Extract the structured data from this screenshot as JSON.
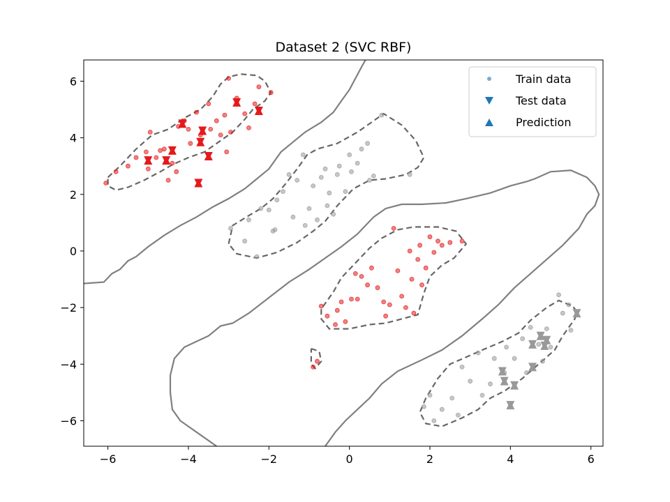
{
  "chart_data": {
    "type": "scatter",
    "title": "Dataset 2 (SVC RBF)",
    "xlabel": "",
    "ylabel": "",
    "xlim": [
      -6.6,
      6.3
    ],
    "ylim": [
      -6.9,
      6.75
    ],
    "xticks": [
      -6,
      -4,
      -2,
      0,
      2,
      4,
      6
    ],
    "yticks": [
      -6,
      -4,
      -2,
      0,
      2,
      4,
      6
    ],
    "grid": false,
    "legend": {
      "position": "top-right",
      "entries": [
        {
          "label": "Train data",
          "marker": "circle",
          "color": "#1f77b4"
        },
        {
          "label": "Test data",
          "marker": "triangle-down",
          "color": "#1f77b4"
        },
        {
          "label": "Prediction",
          "marker": "triangle-up",
          "color": "#1f77b4"
        }
      ]
    },
    "colors": {
      "class_red": "#e41a1c",
      "class_gray": "#999999",
      "boundary": "#7f7f7f",
      "legend_blue": "#1f77b4"
    },
    "train_data": {
      "red": [
        [
          -6.05,
          2.4
        ],
        [
          -5.8,
          2.8
        ],
        [
          -5.5,
          3.0
        ],
        [
          -5.3,
          3.3
        ],
        [
          -5.05,
          3.5
        ],
        [
          -5.0,
          2.9
        ],
        [
          -4.95,
          4.2
        ],
        [
          -4.8,
          3.3
        ],
        [
          -4.7,
          3.55
        ],
        [
          -4.6,
          3.6
        ],
        [
          -4.5,
          2.5
        ],
        [
          -4.4,
          3.1
        ],
        [
          -4.3,
          2.8
        ],
        [
          -4.25,
          4.4
        ],
        [
          -4.1,
          4.6
        ],
        [
          -4.0,
          4.3
        ],
        [
          -3.95,
          3.8
        ],
        [
          -3.8,
          4.9
        ],
        [
          -3.7,
          4.1
        ],
        [
          -3.5,
          5.2
        ],
        [
          -3.45,
          4.3
        ],
        [
          -3.3,
          4.6
        ],
        [
          -3.2,
          4.1
        ],
        [
          -3.1,
          4.8
        ],
        [
          -3.05,
          3.5
        ],
        [
          -3.0,
          6.1
        ],
        [
          -2.95,
          4.2
        ],
        [
          -2.8,
          5.4
        ],
        [
          -2.6,
          4.85
        ],
        [
          -2.5,
          4.35
        ],
        [
          -2.35,
          5.2
        ],
        [
          -2.25,
          5.8
        ],
        [
          -1.95,
          5.6
        ],
        [
          -0.9,
          -4.1
        ],
        [
          -0.8,
          -3.9
        ],
        [
          -0.7,
          -1.95
        ],
        [
          -0.55,
          -2.3
        ],
        [
          -0.35,
          -2.6
        ],
        [
          -0.3,
          -2.1
        ],
        [
          -0.2,
          -1.8
        ],
        [
          -0.1,
          -2.5
        ],
        [
          0.05,
          -1.7
        ],
        [
          0.15,
          -0.8
        ],
        [
          0.2,
          -1.7
        ],
        [
          0.3,
          -0.9
        ],
        [
          0.45,
          -1.2
        ],
        [
          0.55,
          -0.6
        ],
        [
          0.7,
          -1.3
        ],
        [
          0.85,
          -1.8
        ],
        [
          0.9,
          -2.3
        ],
        [
          1.0,
          -1.9
        ],
        [
          1.1,
          0.8
        ],
        [
          1.2,
          -0.7
        ],
        [
          1.3,
          -1.6
        ],
        [
          1.4,
          -2.0
        ],
        [
          1.5,
          0.0
        ],
        [
          1.55,
          -1.0
        ],
        [
          1.6,
          -2.2
        ],
        [
          1.7,
          -0.3
        ],
        [
          1.75,
          0.2
        ],
        [
          1.8,
          -1.2
        ],
        [
          1.9,
          -0.6
        ],
        [
          2.0,
          0.5
        ],
        [
          2.1,
          -0.05
        ],
        [
          2.2,
          0.35
        ],
        [
          2.3,
          0.2
        ],
        [
          2.5,
          0.3
        ],
        [
          2.8,
          0.35
        ]
      ],
      "gray": [
        [
          -2.95,
          0.8
        ],
        [
          -2.6,
          0.35
        ],
        [
          -2.5,
          1.1
        ],
        [
          -2.3,
          -0.2
        ],
        [
          -2.2,
          1.5
        ],
        [
          -2.0,
          1.45
        ],
        [
          -1.9,
          0.7
        ],
        [
          -1.85,
          0.75
        ],
        [
          -1.8,
          1.8
        ],
        [
          -1.65,
          2.1
        ],
        [
          -1.5,
          2.7
        ],
        [
          -1.4,
          1.2
        ],
        [
          -1.3,
          2.5
        ],
        [
          -1.15,
          3.4
        ],
        [
          -1.1,
          0.9
        ],
        [
          -1.0,
          1.5
        ],
        [
          -0.9,
          2.3
        ],
        [
          -0.8,
          1.1
        ],
        [
          -0.7,
          2.6
        ],
        [
          -0.6,
          2.9
        ],
        [
          -0.55,
          1.6
        ],
        [
          -0.5,
          2.05
        ],
        [
          -0.4,
          1.3
        ],
        [
          -0.3,
          2.7
        ],
        [
          -0.25,
          3.0
        ],
        [
          -0.1,
          2.1
        ],
        [
          0.0,
          3.4
        ],
        [
          0.05,
          2.8
        ],
        [
          0.2,
          3.1
        ],
        [
          0.3,
          3.6
        ],
        [
          0.45,
          3.8
        ],
        [
          0.5,
          2.5
        ],
        [
          0.6,
          2.65
        ],
        [
          0.8,
          4.8
        ],
        [
          1.5,
          2.7
        ],
        [
          1.85,
          -5.5
        ],
        [
          2.0,
          -5.1
        ],
        [
          2.1,
          -6.0
        ],
        [
          2.3,
          -5.6
        ],
        [
          2.55,
          -5.2
        ],
        [
          2.7,
          -5.8
        ],
        [
          2.8,
          -4.1
        ],
        [
          3.0,
          -4.6
        ],
        [
          3.2,
          -3.6
        ],
        [
          3.3,
          -5.1
        ],
        [
          3.5,
          -4.7
        ],
        [
          3.6,
          -3.8
        ],
        [
          3.85,
          -4.3
        ],
        [
          3.9,
          -3.4
        ],
        [
          4.1,
          -3.8
        ],
        [
          4.3,
          -3.1
        ],
        [
          4.4,
          -4.3
        ],
        [
          4.5,
          -2.7
        ],
        [
          4.7,
          -3.3
        ],
        [
          4.8,
          -3.9
        ],
        [
          4.9,
          -2.75
        ],
        [
          5.0,
          -3.4
        ],
        [
          5.2,
          -1.55
        ],
        [
          5.3,
          -2.2
        ],
        [
          5.45,
          -1.9
        ],
        [
          5.5,
          -2.8
        ]
      ]
    },
    "test_data": {
      "red": [
        [
          -5.0,
          3.2
        ],
        [
          -4.55,
          3.2
        ],
        [
          -4.4,
          3.55
        ],
        [
          -4.15,
          4.5
        ],
        [
          -3.75,
          2.4
        ],
        [
          -3.7,
          3.85
        ],
        [
          -3.65,
          4.25
        ],
        [
          -3.5,
          3.35
        ],
        [
          -2.8,
          5.25
        ],
        [
          -2.25,
          4.95
        ]
      ],
      "gray": [
        [
          3.8,
          -4.25
        ],
        [
          3.85,
          -4.6
        ],
        [
          4.0,
          -5.45
        ],
        [
          4.1,
          -4.75
        ],
        [
          4.55,
          -3.3
        ],
        [
          4.55,
          -4.1
        ],
        [
          4.75,
          -3.0
        ],
        [
          4.85,
          -3.35
        ],
        [
          4.9,
          -3.15
        ],
        [
          5.65,
          -2.2
        ]
      ]
    },
    "decision_boundaries": [
      [
        [
          -6.6,
          -1.15
        ],
        [
          -6.1,
          -1.1
        ],
        [
          -5.9,
          -0.8
        ],
        [
          -5.7,
          -0.65
        ],
        [
          -5.5,
          -0.35
        ],
        [
          -5.3,
          -0.2
        ],
        [
          -5.0,
          0.15
        ],
        [
          -4.6,
          0.55
        ],
        [
          -4.2,
          0.9
        ],
        [
          -3.8,
          1.2
        ],
        [
          -3.4,
          1.55
        ],
        [
          -3.0,
          1.85
        ],
        [
          -2.6,
          2.2
        ],
        [
          -2.3,
          2.55
        ],
        [
          -2.0,
          2.9
        ],
        [
          -1.7,
          3.5
        ],
        [
          -1.4,
          3.85
        ],
        [
          -1.1,
          4.2
        ],
        [
          -0.7,
          4.55
        ],
        [
          -0.4,
          4.9
        ],
        [
          -0.2,
          5.3
        ],
        [
          0.0,
          5.7
        ],
        [
          0.15,
          6.1
        ],
        [
          0.3,
          6.5
        ],
        [
          0.4,
          6.75
        ]
      ],
      [
        [
          -3.3,
          -6.9
        ],
        [
          -3.7,
          -6.5
        ],
        [
          -4.2,
          -6.0
        ],
        [
          -4.4,
          -5.6
        ],
        [
          -4.45,
          -5.0
        ],
        [
          -4.45,
          -4.4
        ],
        [
          -4.35,
          -3.8
        ],
        [
          -4.1,
          -3.4
        ],
        [
          -3.8,
          -3.2
        ],
        [
          -3.5,
          -3.0
        ],
        [
          -3.2,
          -2.65
        ],
        [
          -2.9,
          -2.55
        ],
        [
          -2.5,
          -2.2
        ],
        [
          -2.0,
          -1.65
        ],
        [
          -1.5,
          -1.1
        ],
        [
          -1.0,
          -0.65
        ],
        [
          -0.6,
          -0.25
        ],
        [
          -0.2,
          0.15
        ],
        [
          0.2,
          0.6
        ],
        [
          0.6,
          1.2
        ],
        [
          0.9,
          1.5
        ],
        [
          1.3,
          1.65
        ],
        [
          1.8,
          1.65
        ],
        [
          2.4,
          1.7
        ],
        [
          2.9,
          1.85
        ],
        [
          3.5,
          2.05
        ],
        [
          4.0,
          2.3
        ],
        [
          4.4,
          2.45
        ],
        [
          4.6,
          2.55
        ],
        [
          5.0,
          2.8
        ],
        [
          5.5,
          2.85
        ],
        [
          5.9,
          2.6
        ],
        [
          6.1,
          2.3
        ],
        [
          6.2,
          2.0
        ],
        [
          6.1,
          1.6
        ],
        [
          5.9,
          1.3
        ],
        [
          5.7,
          0.8
        ],
        [
          5.3,
          0.2
        ],
        [
          4.9,
          -0.3
        ],
        [
          4.5,
          -0.8
        ],
        [
          4.1,
          -1.3
        ],
        [
          3.7,
          -1.9
        ],
        [
          3.3,
          -2.4
        ],
        [
          2.8,
          -3.0
        ],
        [
          2.3,
          -3.5
        ],
        [
          1.8,
          -3.85
        ],
        [
          1.2,
          -4.25
        ],
        [
          0.8,
          -4.7
        ],
        [
          0.5,
          -5.2
        ],
        [
          0.2,
          -5.6
        ],
        [
          -0.1,
          -6.0
        ],
        [
          -0.35,
          -6.4
        ],
        [
          -0.6,
          -6.9
        ]
      ]
    ],
    "margin_contours": [
      [
        [
          -6.0,
          2.6
        ],
        [
          -5.7,
          3.0
        ],
        [
          -5.3,
          3.6
        ],
        [
          -4.9,
          4.1
        ],
        [
          -4.5,
          4.3
        ],
        [
          -4.1,
          4.7
        ],
        [
          -3.7,
          5.0
        ],
        [
          -3.4,
          5.45
        ],
        [
          -3.2,
          5.9
        ],
        [
          -3.0,
          6.15
        ],
        [
          -2.7,
          6.25
        ],
        [
          -2.3,
          6.2
        ],
        [
          -2.1,
          6.0
        ],
        [
          -1.95,
          5.6
        ],
        [
          -2.1,
          5.3
        ],
        [
          -2.4,
          5.0
        ],
        [
          -2.6,
          4.65
        ],
        [
          -2.9,
          4.2
        ],
        [
          -3.2,
          3.9
        ],
        [
          -3.6,
          3.5
        ],
        [
          -4.0,
          3.3
        ],
        [
          -4.4,
          3.05
        ],
        [
          -4.7,
          2.8
        ],
        [
          -5.1,
          2.5
        ],
        [
          -5.5,
          2.25
        ],
        [
          -5.8,
          2.15
        ],
        [
          -6.0,
          2.3
        ],
        [
          -6.0,
          2.6
        ]
      ],
      [
        [
          -3.0,
          0.25
        ],
        [
          -2.9,
          0.9
        ],
        [
          -2.5,
          1.25
        ],
        [
          -2.2,
          1.5
        ],
        [
          -1.9,
          1.85
        ],
        [
          -1.6,
          2.35
        ],
        [
          -1.3,
          2.9
        ],
        [
          -1.05,
          3.4
        ],
        [
          -0.8,
          3.6
        ],
        [
          -0.3,
          3.8
        ],
        [
          0.2,
          4.2
        ],
        [
          0.6,
          4.6
        ],
        [
          0.85,
          4.85
        ],
        [
          1.3,
          4.45
        ],
        [
          1.65,
          3.9
        ],
        [
          1.85,
          3.3
        ],
        [
          1.7,
          2.95
        ],
        [
          1.4,
          2.7
        ],
        [
          0.9,
          2.55
        ],
        [
          0.5,
          2.5
        ],
        [
          0.1,
          2.2
        ],
        [
          -0.3,
          1.6
        ],
        [
          -0.6,
          1.05
        ],
        [
          -0.9,
          0.7
        ],
        [
          -1.3,
          0.3
        ],
        [
          -1.8,
          -0.05
        ],
        [
          -2.3,
          -0.25
        ],
        [
          -2.8,
          -0.1
        ],
        [
          -3.0,
          0.25
        ]
      ],
      [
        [
          -0.7,
          -2.05
        ],
        [
          -0.7,
          -2.4
        ],
        [
          -0.5,
          -2.75
        ],
        [
          0.0,
          -2.75
        ],
        [
          0.5,
          -2.6
        ],
        [
          0.9,
          -2.55
        ],
        [
          1.3,
          -2.4
        ],
        [
          1.7,
          -2.25
        ],
        [
          1.85,
          -1.5
        ],
        [
          2.0,
          -0.9
        ],
        [
          2.3,
          -0.5
        ],
        [
          2.6,
          -0.25
        ],
        [
          2.9,
          0.25
        ],
        [
          2.65,
          0.7
        ],
        [
          2.2,
          0.85
        ],
        [
          1.6,
          0.85
        ],
        [
          1.2,
          0.75
        ],
        [
          0.8,
          0.45
        ],
        [
          0.5,
          0.1
        ],
        [
          0.1,
          -0.5
        ],
        [
          -0.2,
          -0.95
        ],
        [
          -0.4,
          -1.45
        ],
        [
          -0.7,
          -2.05
        ]
      ],
      [
        [
          -0.95,
          -3.45
        ],
        [
          -0.75,
          -3.55
        ],
        [
          -0.7,
          -3.9
        ],
        [
          -0.85,
          -4.15
        ],
        [
          -0.95,
          -4.0
        ],
        [
          -0.95,
          -3.45
        ]
      ],
      [
        [
          1.9,
          -5.2
        ],
        [
          1.75,
          -5.7
        ],
        [
          1.9,
          -6.1
        ],
        [
          2.3,
          -6.2
        ],
        [
          2.8,
          -5.9
        ],
        [
          3.2,
          -5.6
        ],
        [
          3.5,
          -5.2
        ],
        [
          3.85,
          -4.95
        ],
        [
          4.3,
          -4.5
        ],
        [
          4.7,
          -4.0
        ],
        [
          5.1,
          -3.5
        ],
        [
          5.3,
          -3.0
        ],
        [
          5.6,
          -2.4
        ],
        [
          5.65,
          -2.15
        ],
        [
          5.55,
          -1.95
        ],
        [
          5.2,
          -1.75
        ],
        [
          4.9,
          -2.0
        ],
        [
          4.5,
          -2.45
        ],
        [
          4.2,
          -2.9
        ],
        [
          3.8,
          -3.2
        ],
        [
          3.3,
          -3.5
        ],
        [
          2.9,
          -3.75
        ],
        [
          2.5,
          -4.0
        ],
        [
          2.2,
          -4.5
        ],
        [
          1.9,
          -5.2
        ]
      ]
    ]
  }
}
